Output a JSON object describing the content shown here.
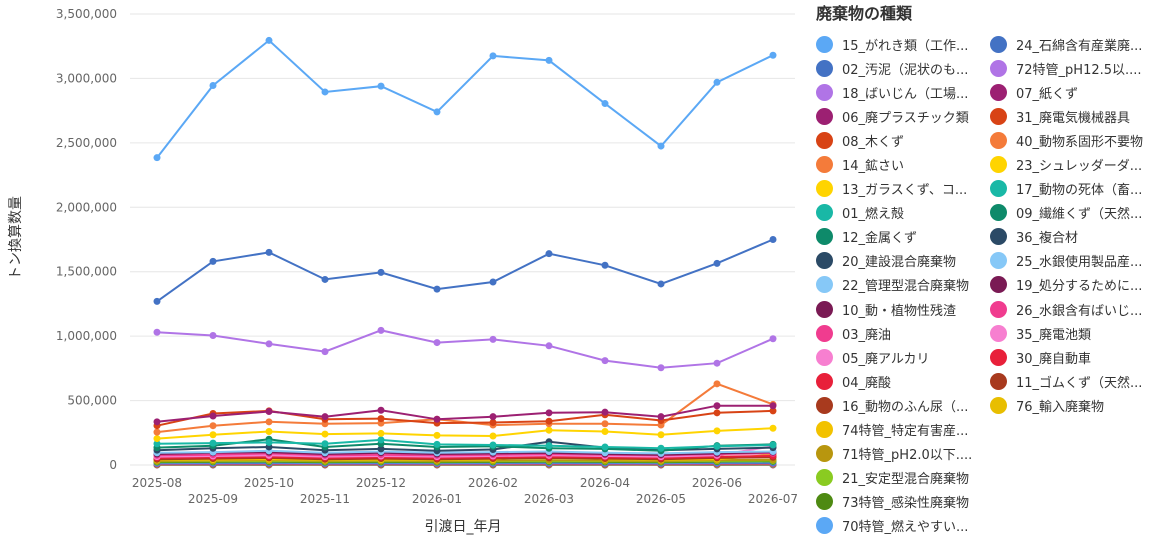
{
  "chart_data": {
    "type": "line",
    "xlabel": "引渡日_年月",
    "ylabel": "トン換算数量",
    "ylim": [
      0,
      3500000
    ],
    "yticks": [
      "0",
      "500,000",
      "1,000,000",
      "1,500,000",
      "2,000,000",
      "2,500,000",
      "3,000,000",
      "3,500,000"
    ],
    "grid": true,
    "legend_position": "right",
    "categories": [
      "2025-08",
      "2025-09",
      "2025-10",
      "2025-11",
      "2025-12",
      "2026-01",
      "2026-02",
      "2026-03",
      "2026-04",
      "2026-05",
      "2026-06",
      "2026-07"
    ],
    "series": [
      {
        "name": "15_がれき類（工作...",
        "color": "#5BA8F5",
        "values": [
          2385000,
          2945000,
          3295000,
          2895000,
          2940000,
          2740000,
          3175000,
          3140000,
          2805000,
          2475000,
          2970000,
          3180000
        ]
      },
      {
        "name": "02_汚泥（泥状のも...",
        "color": "#4372C4",
        "values": [
          1270000,
          1580000,
          1650000,
          1440000,
          1495000,
          1365000,
          1420000,
          1640000,
          1550000,
          1405000,
          1565000,
          1750000
        ]
      },
      {
        "name": "18_ばいじん（工場...",
        "color": "#B074E6",
        "values": [
          1030000,
          1005000,
          940000,
          880000,
          1045000,
          950000,
          975000,
          925000,
          810000,
          755000,
          790000,
          980000
        ]
      },
      {
        "name": "06_廃プラスチック類",
        "color": "#9C2072",
        "values": [
          335000,
          380000,
          415000,
          375000,
          425000,
          355000,
          375000,
          405000,
          410000,
          375000,
          460000,
          460000
        ]
      },
      {
        "name": "08_木くず",
        "color": "#D84315",
        "values": [
          305000,
          400000,
          420000,
          355000,
          360000,
          325000,
          330000,
          340000,
          390000,
          345000,
          405000,
          420000
        ]
      },
      {
        "name": "14_鉱さい",
        "color": "#F47B3A",
        "values": [
          255000,
          305000,
          335000,
          320000,
          325000,
          355000,
          310000,
          320000,
          320000,
          310000,
          630000,
          470000
        ]
      },
      {
        "name": "13_ガラスくず、コ...",
        "color": "#FFD400",
        "values": [
          205000,
          235000,
          260000,
          240000,
          245000,
          230000,
          225000,
          270000,
          260000,
          235000,
          265000,
          285000
        ]
      },
      {
        "name": "01_燃え殻",
        "color": "#19B8A6",
        "values": [
          165000,
          170000,
          175000,
          165000,
          195000,
          160000,
          155000,
          150000,
          140000,
          130000,
          145000,
          155000
        ]
      },
      {
        "name": "12_金属くず",
        "color": "#0E8A6A",
        "values": [
          135000,
          150000,
          200000,
          140000,
          165000,
          140000,
          145000,
          130000,
          125000,
          110000,
          150000,
          160000
        ]
      },
      {
        "name": "20_建設混合廃棄物",
        "color": "#2B4A66",
        "values": [
          115000,
          130000,
          140000,
          115000,
          125000,
          110000,
          120000,
          180000,
          135000,
          115000,
          125000,
          135000
        ]
      },
      {
        "name": "22_管理型混合廃棄物",
        "color": "#86C8F7",
        "values": [
          95000,
          100000,
          110000,
          95000,
          105000,
          95000,
          100000,
          105000,
          95000,
          90000,
          100000,
          105000
        ]
      },
      {
        "name": "10_動・植物性残渣",
        "color": "#7A1A54",
        "values": [
          85000,
          95000,
          100000,
          85000,
          95000,
          85000,
          90000,
          95000,
          85000,
          80000,
          90000,
          100000
        ]
      },
      {
        "name": "03_廃油",
        "color": "#F03C8F",
        "values": [
          75000,
          80000,
          90000,
          75000,
          80000,
          75000,
          80000,
          85000,
          80000,
          75000,
          85000,
          90000
        ]
      },
      {
        "name": "05_廃アルカリ",
        "color": "#F77FD0",
        "values": [
          65000,
          70000,
          75000,
          65000,
          70000,
          65000,
          70000,
          75000,
          70000,
          65000,
          75000,
          145000
        ]
      },
      {
        "name": "04_廃酸",
        "color": "#E8203A",
        "values": [
          55000,
          60000,
          65000,
          55000,
          60000,
          55000,
          60000,
          65000,
          60000,
          55000,
          65000,
          70000
        ]
      },
      {
        "name": "16_動物のふん尿（...",
        "color": "#A83A1E",
        "values": [
          45000,
          50000,
          55000,
          45000,
          50000,
          45000,
          50000,
          55000,
          50000,
          45000,
          55000,
          60000
        ]
      },
      {
        "name": "74特管_特定有害産...",
        "color": "#F2C200",
        "values": [
          40000,
          42000,
          45000,
          40000,
          42000,
          40000,
          42000,
          90000,
          45000,
          40000,
          45000,
          80000
        ]
      },
      {
        "name": "71特管_pH2.0以下....",
        "color": "#B8960E",
        "values": [
          32000,
          35000,
          38000,
          33000,
          35000,
          32000,
          35000,
          38000,
          35000,
          32000,
          38000,
          40000
        ]
      },
      {
        "name": "21_安定型混合廃棄物",
        "color": "#8ACB21",
        "values": [
          28000,
          30000,
          32000,
          28000,
          30000,
          28000,
          30000,
          32000,
          30000,
          28000,
          32000,
          35000
        ]
      },
      {
        "name": "73特管_感染性廃棄物",
        "color": "#4E8A12",
        "values": [
          22000,
          24000,
          26000,
          22000,
          24000,
          22000,
          24000,
          26000,
          24000,
          22000,
          26000,
          28000
        ]
      },
      {
        "name": "70特管_燃えやすい...",
        "color": "#5BA8F5",
        "values": [
          18000,
          20000,
          22000,
          18000,
          20000,
          18000,
          20000,
          22000,
          20000,
          18000,
          22000,
          24000
        ]
      },
      {
        "name": "24_石綿含有産業廃...",
        "color": "#4372C4",
        "values": [
          14000,
          15000,
          16000,
          14000,
          15000,
          14000,
          15000,
          16000,
          15000,
          14000,
          16000,
          17000
        ]
      },
      {
        "name": "72特管_pH12.5以....",
        "color": "#B074E6",
        "values": [
          11000,
          12000,
          13000,
          11000,
          12000,
          11000,
          12000,
          13000,
          12000,
          11000,
          13000,
          14000
        ]
      },
      {
        "name": "07_紙くず",
        "color": "#9C2072",
        "values": [
          9000,
          10000,
          11000,
          9000,
          10000,
          9000,
          10000,
          11000,
          10000,
          9000,
          11000,
          12000
        ]
      },
      {
        "name": "31_廃電気機械器具",
        "color": "#D84315",
        "values": [
          7000,
          8000,
          9000,
          7000,
          8000,
          7000,
          8000,
          9000,
          8000,
          7000,
          9000,
          10000
        ]
      },
      {
        "name": "40_動物系固形不要物",
        "color": "#F47B3A",
        "values": [
          6000,
          6500,
          7000,
          6000,
          6500,
          6000,
          6500,
          7000,
          6500,
          6000,
          7000,
          7500
        ]
      },
      {
        "name": "23_シュレッダーダ...",
        "color": "#FFD400",
        "values": [
          5000,
          5500,
          6000,
          5000,
          5500,
          5000,
          5500,
          6000,
          5500,
          5000,
          6000,
          6500
        ]
      },
      {
        "name": "17_動物の死体（畜...",
        "color": "#19B8A6",
        "values": [
          4000,
          4500,
          5000,
          4000,
          4500,
          4000,
          4500,
          5000,
          4500,
          4000,
          5000,
          5500
        ]
      },
      {
        "name": "09_繊維くず（天然...",
        "color": "#0E8A6A",
        "values": [
          3500,
          3800,
          4000,
          3500,
          3800,
          3500,
          3800,
          4000,
          3800,
          3500,
          4000,
          4200
        ]
      },
      {
        "name": "36_複合材",
        "color": "#2B4A66",
        "values": [
          3000,
          3200,
          3400,
          3000,
          3200,
          3000,
          3200,
          3400,
          3200,
          3000,
          3400,
          3600
        ]
      },
      {
        "name": "25_水銀使用製品産...",
        "color": "#86C8F7",
        "values": [
          2500,
          2700,
          2900,
          2500,
          2700,
          2500,
          2700,
          2900,
          2700,
          2500,
          2900,
          3100
        ]
      },
      {
        "name": "19_処分するために...",
        "color": "#7A1A54",
        "values": [
          2000,
          2200,
          2400,
          2000,
          2200,
          2000,
          2200,
          2400,
          2200,
          2000,
          2400,
          2600
        ]
      },
      {
        "name": "26_水銀含有ばいじ...",
        "color": "#F03C8F",
        "values": [
          1600,
          1800,
          2000,
          1600,
          1800,
          1600,
          1800,
          2000,
          1800,
          1600,
          2000,
          2200
        ]
      },
      {
        "name": "35_廃電池類",
        "color": "#F77FD0",
        "values": [
          1300,
          1400,
          1500,
          1300,
          1400,
          1300,
          1400,
          1500,
          1400,
          1300,
          1500,
          1600
        ]
      },
      {
        "name": "30_廃自動車",
        "color": "#E8203A",
        "values": [
          1000,
          1100,
          1200,
          1000,
          1100,
          1000,
          1100,
          1200,
          1100,
          1000,
          1200,
          1300
        ]
      },
      {
        "name": "11_ゴムくず（天然...",
        "color": "#A83A1E",
        "values": [
          800,
          900,
          1000,
          800,
          900,
          800,
          900,
          1000,
          900,
          800,
          1000,
          1100
        ]
      },
      {
        "name": "76_輸入廃棄物",
        "color": "#E8BE00",
        "values": [
          null,
          null,
          null,
          null,
          null,
          null,
          null,
          null,
          0,
          null,
          null,
          null
        ]
      }
    ]
  }
}
